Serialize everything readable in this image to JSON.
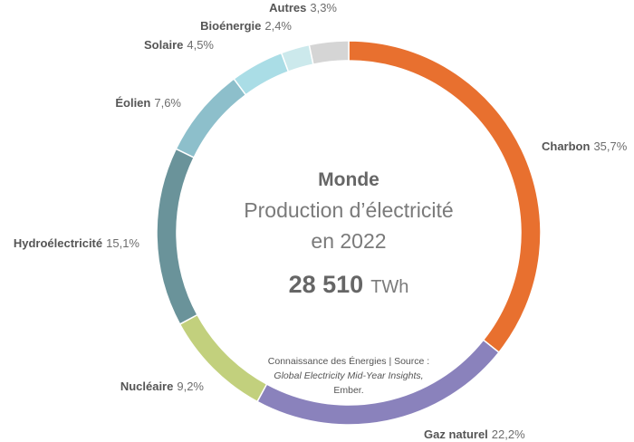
{
  "chart_data": {
    "type": "pie",
    "variant": "donut",
    "title": "Monde",
    "subtitle_lines": [
      "Production d’électricité",
      "en 2022"
    ],
    "total": {
      "value": "28 510",
      "unit": "TWh"
    },
    "source": {
      "line1": "Connaissance des Énergies | Source :",
      "line2": "Global Electricity Mid-Year Insights,",
      "line3": "Ember."
    },
    "slices": [
      {
        "name": "Charbon",
        "value": 35.7,
        "label": "35,7%",
        "color": "#e8702f"
      },
      {
        "name": "Gaz naturel",
        "value": 22.2,
        "label": "22,2%",
        "color": "#8a82bc"
      },
      {
        "name": "Nucléaire",
        "value": 9.2,
        "label": "9,2%",
        "color": "#c2d07d"
      },
      {
        "name": "Hydroélectricité",
        "value": 15.1,
        "label": "15,1%",
        "color": "#6a939a"
      },
      {
        "name": "Éolien",
        "value": 7.6,
        "label": "7,6%",
        "color": "#8dbfcb"
      },
      {
        "name": "Solaire",
        "value": 4.5,
        "label": "4,5%",
        "color": "#aadde6"
      },
      {
        "name": "Bioénergie",
        "value": 2.4,
        "label": "2,4%",
        "color": "#cce9ec"
      },
      {
        "name": "Autres",
        "value": 3.3,
        "label": "3,3%",
        "color": "#d5d5d5"
      }
    ]
  }
}
